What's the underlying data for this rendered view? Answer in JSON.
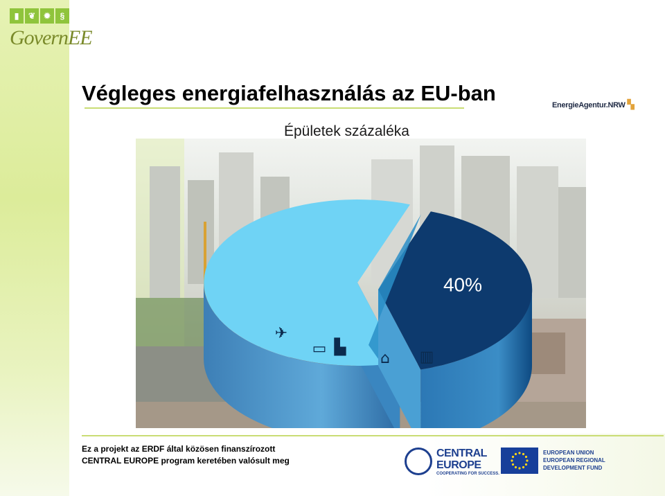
{
  "logo": {
    "text": "GovernEE",
    "icons": [
      "building-icon",
      "leaf-icon",
      "sun-icon",
      "paragraph-icon"
    ],
    "color": "#8fc43c"
  },
  "title": "Végleges energiafelhasználás az EU-ban",
  "agency": {
    "name": "EnergieAgentur.NRW",
    "color": "#e2a33b"
  },
  "subtitle": "Épületek százaléka",
  "chart_data": {
    "type": "pie",
    "title": "",
    "labels": [
      "40%"
    ],
    "slices": [
      {
        "label": "40%",
        "value": 40,
        "color": "#0d3a6e",
        "icons": [
          "houses-icon",
          "buildings-icon"
        ]
      },
      {
        "label": "",
        "value": 60,
        "color": "#6fd3f5",
        "icons": [
          "airplane-icon",
          "truck-icon",
          "factory-icon"
        ]
      }
    ],
    "exploded": true,
    "style": "3d"
  },
  "footer": {
    "line1": "Ez a projekt az ERDF által közösen finanszírozott",
    "line2": "CENTRAL EUROPE  program keretében valósult meg"
  },
  "central_europe": {
    "line1": "CENTRAL",
    "line2": "EUROPE",
    "tagline": "COOPERATING FOR SUCCESS."
  },
  "eu_fund": {
    "line1": "EUROPEAN UNION",
    "line2": "EUROPEAN REGIONAL",
    "line3": "DEVELOPMENT FUND"
  }
}
